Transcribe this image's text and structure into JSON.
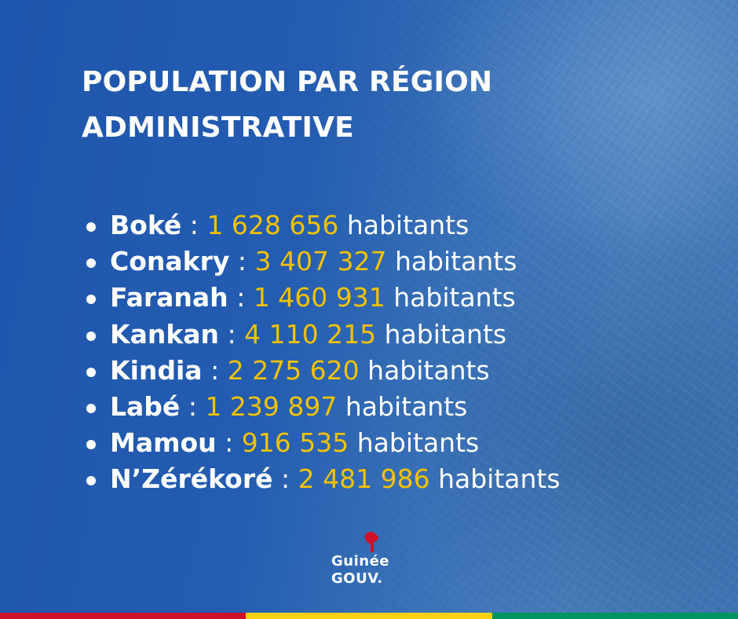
{
  "title": {
    "line1": "POPULATION PAR RÉGION",
    "line2": "ADMINISTRATIVE"
  },
  "regions": [
    {
      "name": "Boké",
      "value": "1 628 656",
      "unit": "habitants"
    },
    {
      "name": "Conakry",
      "value": "3 407 327",
      "unit": "habitants"
    },
    {
      "name": "Faranah",
      "value": "1 460 931",
      "unit": "habitants"
    },
    {
      "name": "Kankan",
      "value": "4 110 215",
      "unit": "habitants"
    },
    {
      "name": "Kindia",
      "value": "2 275 620",
      "unit": "habitants"
    },
    {
      "name": "Labé",
      "value": "1 239 897",
      "unit": "habitants"
    },
    {
      "name": "Mamou",
      "value": "916 535",
      "unit": "habitants"
    },
    {
      "name": "N’Zérékoré",
      "value": "2 481 986",
      "unit": "habitants"
    }
  ],
  "separator": ":",
  "logo": {
    "line1": "Guinée",
    "line2": "GOUV."
  },
  "colors": {
    "background": "#235cb0",
    "value": "#f2c200",
    "flag_red": "#ce1126",
    "flag_yellow": "#fcd116",
    "flag_green": "#009460"
  }
}
